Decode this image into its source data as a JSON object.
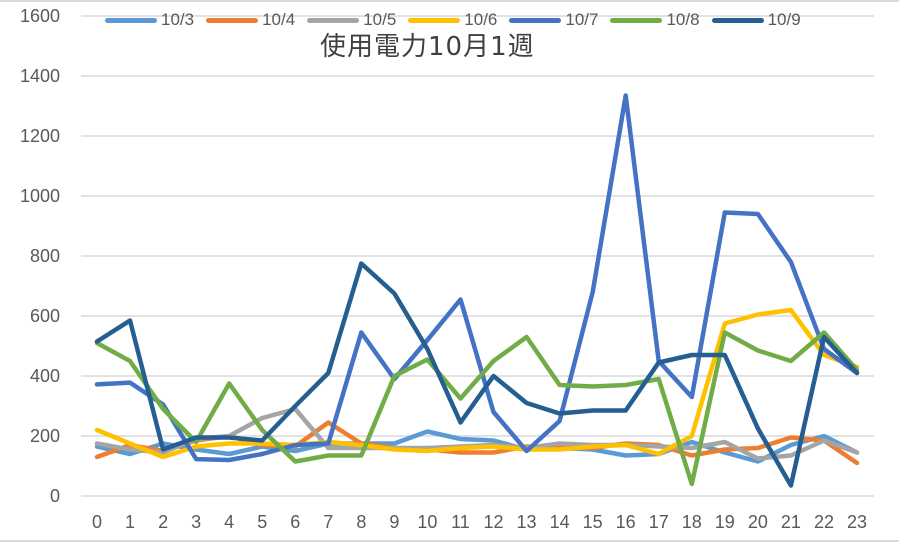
{
  "chart_data": {
    "type": "line",
    "title": "使用電力10月1週",
    "xlabel": "",
    "ylabel": "",
    "ylim": [
      0,
      1600
    ],
    "yticks": [
      0,
      200,
      400,
      600,
      800,
      1000,
      1200,
      1400,
      1600
    ],
    "grid": true,
    "legend_position": "top",
    "x": [
      0,
      1,
      2,
      3,
      4,
      5,
      6,
      7,
      8,
      9,
      10,
      11,
      12,
      13,
      14,
      15,
      16,
      17,
      18,
      19,
      20,
      21,
      22,
      23
    ],
    "series": [
      {
        "name": "10/3",
        "color": "#5B9BD5",
        "values": [
          165,
          140,
          175,
          155,
          140,
          165,
          150,
          175,
          175,
          175,
          215,
          190,
          185,
          155,
          160,
          155,
          135,
          140,
          180,
          145,
          115,
          170,
          200,
          145
        ]
      },
      {
        "name": "10/4",
        "color": "#ED7D31",
        "values": [
          130,
          170,
          150,
          185,
          200,
          170,
          165,
          245,
          175,
          160,
          155,
          145,
          145,
          165,
          160,
          160,
          175,
          170,
          135,
          155,
          160,
          195,
          185,
          110
        ]
      },
      {
        "name": "10/5",
        "color": "#A5A5A5",
        "values": [
          175,
          155,
          145,
          190,
          200,
          260,
          290,
          160,
          160,
          160,
          160,
          165,
          170,
          160,
          175,
          170,
          170,
          165,
          160,
          180,
          125,
          135,
          185,
          145
        ]
      },
      {
        "name": "10/6",
        "color": "#FFC000",
        "values": [
          220,
          175,
          130,
          165,
          175,
          175,
          170,
          180,
          170,
          155,
          150,
          160,
          165,
          155,
          155,
          165,
          170,
          140,
          200,
          575,
          605,
          620,
          470,
          430
        ]
      },
      {
        "name": "10/7",
        "color": "#4472C4",
        "values": [
          372,
          378,
          305,
          123,
          120,
          140,
          170,
          175,
          545,
          390,
          520,
          655,
          280,
          150,
          250,
          680,
          1335,
          450,
          330,
          945,
          940,
          780,
          490,
          410
        ]
      },
      {
        "name": "10/8",
        "color": "#70AD47",
        "values": [
          510,
          450,
          290,
          180,
          375,
          220,
          115,
          135,
          135,
          400,
          455,
          325,
          450,
          530,
          370,
          365,
          370,
          390,
          40,
          545,
          485,
          450,
          545,
          420
        ]
      },
      {
        "name": "10/9",
        "color": "#255E91",
        "values": [
          515,
          585,
          155,
          195,
          195,
          185,
          300,
          410,
          775,
          675,
          490,
          245,
          400,
          310,
          275,
          285,
          285,
          445,
          470,
          470,
          225,
          35,
          530,
          410
        ]
      }
    ]
  }
}
